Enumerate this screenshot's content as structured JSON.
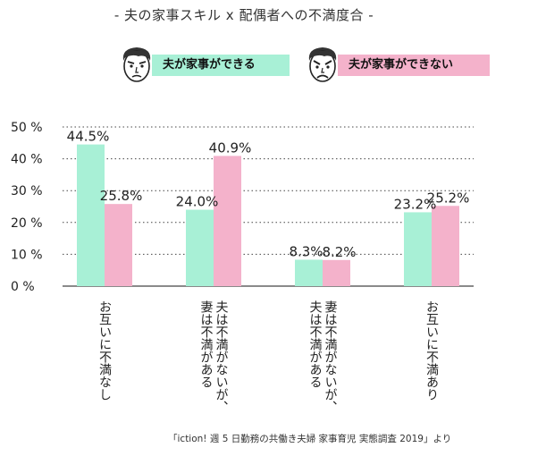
{
  "title": "- 夫の家事スキル x 配偶者への不満度合 -",
  "legend": [
    {
      "label": "夫が家事ができる",
      "color": "#a8f0d6",
      "icon": "frowning-man-face-icon"
    },
    {
      "label": "夫が家事ができない",
      "color": "#f4b2cb",
      "icon": "angry-man-face-icon"
    }
  ],
  "source": "「iction! 週 5 日勤務の共働き夫婦 家事育児 実態調査 2019」より",
  "chart_data": {
    "type": "bar",
    "categories": [
      "お互いに不満なし",
      "夫は不満がないが、妻は不満がある",
      "妻は不満がないが、夫は不満がある",
      "お互いに不満あり"
    ],
    "category_lines": [
      [
        "お互いに不満なし"
      ],
      [
        "夫は不満がないが、",
        "妻は不満がある"
      ],
      [
        "妻は不満がないが、",
        "夫は不満がある"
      ],
      [
        "お互いに不満あり"
      ]
    ],
    "series": [
      {
        "name": "夫が家事ができる",
        "values": [
          44.5,
          24.0,
          8.3,
          23.2
        ],
        "labels": [
          "44.5%",
          "24.0%",
          "8.3%",
          "23.2%"
        ],
        "color": "#a8f0d6"
      },
      {
        "name": "夫が家事ができない",
        "values": [
          25.8,
          40.9,
          8.2,
          25.2
        ],
        "labels": [
          "25.8%",
          "40.9%",
          "8.2%",
          "25.2%"
        ],
        "color": "#f4b2cb"
      }
    ],
    "ylim": [
      0,
      50
    ],
    "yticks": [
      0,
      10,
      20,
      30,
      40,
      50
    ],
    "ytick_labels": [
      "0 %",
      "10 %",
      "20 %",
      "30 %",
      "40 %",
      "50 %"
    ],
    "grid": true,
    "grid_style": "dotted horizontal",
    "legend_position": "top"
  }
}
